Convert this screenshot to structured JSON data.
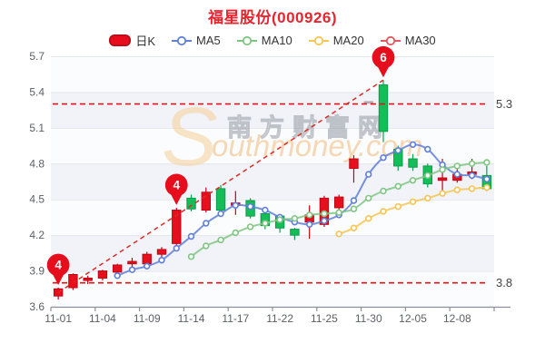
{
  "title": {
    "text": "福星股份(000926)"
  },
  "legend": {
    "items": [
      {
        "label": "日K",
        "type": "candle",
        "color": "#e60d1d"
      },
      {
        "label": "MA5",
        "type": "line",
        "color": "#5f7fd8"
      },
      {
        "label": "MA10",
        "type": "line",
        "color": "#80c683"
      },
      {
        "label": "MA20",
        "type": "line",
        "color": "#f5c552"
      },
      {
        "label": "MA30",
        "type": "line",
        "color": "#e4575f"
      }
    ]
  },
  "watermark": {
    "big_s": "S",
    "cn": "南方财富网",
    "en": "outhmoney.com"
  },
  "colors": {
    "title": "#e6252f",
    "up": "#e60f1e",
    "up_border": "#c00514",
    "down": "#15bd58",
    "down_border": "#0a9e48",
    "flat": "#b9a8ab",
    "ma5": "#5f7fd8",
    "ma10": "#80c683",
    "ma20": "#f5c552",
    "ma30": "#e4575f",
    "ref_line": "#e01616",
    "trend_line": "#e02a22",
    "balloon": "#e60d1d",
    "band_tint": "#f1f3f9",
    "band_plain": "#fbfcfe",
    "grid_line": "#e4e6ed",
    "axis_line": "#8a8f98",
    "axis_text": "#5c6066",
    "ref_label_text": "#444444",
    "wm_orange": "#f6d3a0",
    "wm_text_orange": "#f3c084",
    "wm_gray": "#9ba0a8"
  },
  "chart_data": {
    "type": "candlestick+line",
    "title": "福星股份(000926)",
    "x_labels": [
      "11-01",
      "11-04",
      "11-09",
      "11-14",
      "11-17",
      "11-22",
      "11-25",
      "11-30",
      "12-05",
      "12-08"
    ],
    "x_label_every": 3,
    "y_ticks": [
      3.6,
      3.9,
      4.2,
      4.5,
      4.8,
      5.1,
      5.4,
      5.7
    ],
    "ylim": [
      3.6,
      5.7
    ],
    "grid": "horizontal gridlines with alternating split bands",
    "legend_position": "top",
    "candles": [
      {
        "d": "11-01",
        "o": 3.69,
        "c": 3.75,
        "l": 3.66,
        "h": 3.76
      },
      {
        "d": "11-02",
        "o": 3.76,
        "c": 3.87,
        "l": 3.74,
        "h": 3.88
      },
      {
        "d": "11-03",
        "o": 3.82,
        "c": 3.84,
        "l": 3.79,
        "h": 3.86
      },
      {
        "d": "11-04",
        "o": 3.84,
        "c": 3.9,
        "l": 3.82,
        "h": 3.91
      },
      {
        "d": "11-07",
        "o": 3.89,
        "c": 3.95,
        "l": 3.87,
        "h": 3.96
      },
      {
        "d": "11-08",
        "o": 3.96,
        "c": 3.98,
        "l": 3.92,
        "h": 4.01
      },
      {
        "d": "11-09",
        "o": 3.96,
        "c": 4.04,
        "l": 3.94,
        "h": 4.06
      },
      {
        "d": "11-10",
        "o": 4.04,
        "c": 4.08,
        "l": 4.0,
        "h": 4.1
      },
      {
        "d": "11-11",
        "o": 4.13,
        "c": 4.41,
        "l": 4.1,
        "h": 4.43
      },
      {
        "d": "11-14",
        "o": 4.51,
        "c": 4.42,
        "l": 4.4,
        "h": 4.54
      },
      {
        "d": "11-15",
        "o": 4.41,
        "c": 4.56,
        "l": 4.39,
        "h": 4.6
      },
      {
        "d": "11-16",
        "o": 4.59,
        "c": 4.41,
        "l": 4.39,
        "h": 4.62
      },
      {
        "d": "11-17",
        "o": 4.45,
        "c": 4.47,
        "l": 4.37,
        "h": 4.57
      },
      {
        "d": "11-18",
        "o": 4.49,
        "c": 4.36,
        "l": 4.34,
        "h": 4.51
      },
      {
        "d": "11-21",
        "o": 4.38,
        "c": 4.28,
        "l": 4.25,
        "h": 4.4
      },
      {
        "d": "11-22",
        "o": 4.36,
        "c": 4.26,
        "l": 4.22,
        "h": 4.38
      },
      {
        "d": "11-23",
        "o": 4.25,
        "c": 4.2,
        "l": 4.16,
        "h": 4.26
      },
      {
        "d": "11-24",
        "o": 4.31,
        "c": 4.37,
        "l": 4.17,
        "h": 4.45
      },
      {
        "d": "11-25",
        "o": 4.29,
        "c": 4.51,
        "l": 4.27,
        "h": 4.53
      },
      {
        "d": "11-28",
        "o": 4.43,
        "c": 4.52,
        "l": 4.35,
        "h": 4.54
      },
      {
        "d": "11-29",
        "o": 4.76,
        "c": 4.84,
        "l": 4.64,
        "h": 4.87
      },
      {
        "d": "11-30",
        "o": 5.32,
        "c": 5.32,
        "l": 5.32,
        "h": 5.32,
        "flat": true
      },
      {
        "d": "12-01",
        "o": 5.46,
        "c": 5.07,
        "l": 4.98,
        "h": 5.5
      },
      {
        "d": "12-02",
        "o": 4.92,
        "c": 4.78,
        "l": 4.74,
        "h": 4.95
      },
      {
        "d": "12-05",
        "o": 4.84,
        "c": 4.77,
        "l": 4.74,
        "h": 4.88
      },
      {
        "d": "12-06",
        "o": 4.78,
        "c": 4.63,
        "l": 4.6,
        "h": 4.8
      },
      {
        "d": "12-07",
        "o": 4.66,
        "c": 4.68,
        "l": 4.55,
        "h": 4.84
      },
      {
        "d": "12-08",
        "o": 4.66,
        "c": 4.71,
        "l": 4.64,
        "h": 4.76
      },
      {
        "d": "12-09",
        "o": 4.71,
        "c": 4.73,
        "l": 4.67,
        "h": 4.84
      },
      {
        "d": "12-12",
        "o": 4.7,
        "c": 4.59,
        "l": 4.57,
        "h": 4.78
      }
    ],
    "series": [
      {
        "name": "MA5",
        "start": 4,
        "values": [
          3.86,
          3.91,
          3.94,
          3.99,
          4.09,
          4.19,
          4.3,
          4.38,
          4.45,
          4.44,
          4.41,
          4.35,
          4.31,
          4.29,
          4.32,
          4.37,
          4.49,
          4.71,
          4.85,
          4.91,
          4.96,
          4.92,
          4.79,
          4.71,
          4.7,
          4.67
        ]
      },
      {
        "name": "MA10",
        "start": 9,
        "values": [
          4.02,
          4.11,
          4.16,
          4.22,
          4.27,
          4.3,
          4.33,
          4.34,
          4.37,
          4.38,
          4.39,
          4.42,
          4.51,
          4.57,
          4.61,
          4.66,
          4.7,
          4.75,
          4.78,
          4.8,
          4.81
        ]
      },
      {
        "name": "MA20",
        "start": 19,
        "values": [
          4.21,
          4.26,
          4.34,
          4.4,
          4.44,
          4.48,
          4.51,
          4.55,
          4.58,
          4.59,
          4.6
        ]
      },
      {
        "name": "MA30",
        "start": null,
        "values": []
      }
    ],
    "ref_lines": [
      {
        "value": 5.3,
        "label": "5.3"
      },
      {
        "value": 3.8,
        "label": "3.8"
      }
    ],
    "trend_line": {
      "from_index": 0,
      "from_value": 3.72,
      "to_index": 22,
      "to_value": 5.5
    },
    "markers": [
      {
        "label": "4",
        "index": 0,
        "value": 3.76
      },
      {
        "label": "4",
        "index": 8,
        "value": 4.43
      },
      {
        "label": "6",
        "index": 22,
        "value": 5.5
      }
    ]
  }
}
